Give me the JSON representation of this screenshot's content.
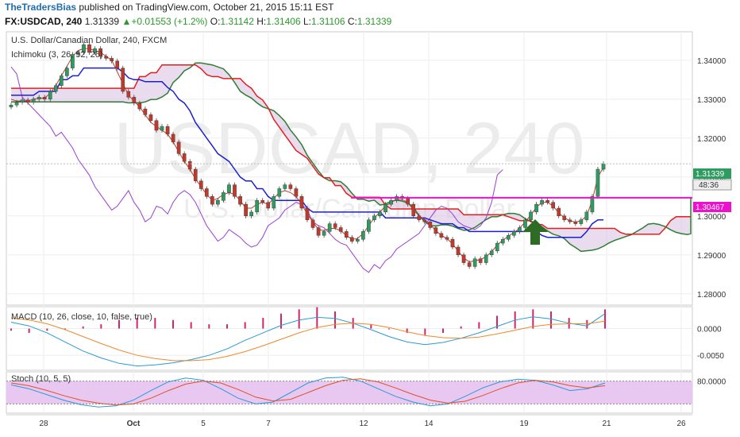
{
  "header": {
    "author": "TheTradersBias",
    "published_text": " published on TradingView.com, October 21, 2015 15:11 EST",
    "symbol": "FX:USDCAD, 240",
    "last": "1.31339",
    "change": "+0.01553 (+1.2%)",
    "o_label": "O:",
    "o": "1.31142",
    "h_label": "H:",
    "h": "1.31406",
    "l_label": "L:",
    "l": "1.31106",
    "c_label": "C:",
    "c": "1.31339"
  },
  "panes": {
    "main_title": "U.S. Dollar/Canadian Dollar, 240, FXCM",
    "ichimoku_label": "Ichimoku (3, 26, 52, 26)",
    "macd_label": "MACD (10, 26, close, 10, false, true)",
    "stoch_label": "Stoch (10, 5, 5)",
    "watermark_big": "USDCAD, 240",
    "watermark_small": "U.S. Dollar/Canadian Dollar"
  },
  "price_tags": {
    "last": "1.31339",
    "countdown": "48:36",
    "level": "1.30467"
  },
  "colors": {
    "up": "#2e9b5f",
    "down": "#c0392b",
    "tenkan": "#c0392b",
    "kijun": "#1a1fd6",
    "chikou": "#9b3fd1",
    "senkou_a": "#2e7d32",
    "senkou_b": "#e02020",
    "cloud": "#d9c4e3",
    "level": "#ee11cc",
    "macd": "#2a9ad8",
    "signal": "#f0882a",
    "hist": "#d0266a",
    "stoch_k": "#2a9ad8",
    "stoch_d": "#e0502a",
    "stoch_band": "#e8c8f0",
    "arrow": "#2e6b24"
  },
  "chart_data": [
    {
      "type": "candlestick",
      "title": "U.S. Dollar/Canadian Dollar, 240, FXCM",
      "ylim": [
        1.2775,
        1.3465
      ],
      "yticks": [
        "1.34000",
        "1.33000",
        "1.32000",
        "1.31000",
        "1.30000",
        "1.29000",
        "1.28000"
      ],
      "xticks": [
        "28",
        "Oct",
        "5",
        "7",
        "12",
        "14",
        "19",
        "21",
        "26"
      ],
      "horizontal_level": 1.30467,
      "series": [
        {
          "name": "Close",
          "values": [
            1.3285,
            1.3292,
            1.3298,
            1.3292,
            1.33,
            1.3305,
            1.33,
            1.332,
            1.3335,
            1.336,
            1.338,
            1.3415,
            1.342,
            1.344,
            1.342,
            1.343,
            1.341,
            1.3405,
            1.3398,
            1.338,
            1.332,
            1.3305,
            1.329,
            1.3275,
            1.326,
            1.3245,
            1.322,
            1.323,
            1.321,
            1.319,
            1.316,
            1.314,
            1.312,
            1.309,
            1.307,
            1.305,
            1.303,
            1.304,
            1.306,
            1.308,
            1.305,
            1.303,
            1.3,
            1.301,
            1.304,
            1.3035,
            1.302,
            1.305,
            1.307,
            1.308,
            1.307,
            1.305,
            1.302,
            1.299,
            1.297,
            1.295,
            1.296,
            1.298,
            1.297,
            1.296,
            1.2945,
            1.2935,
            1.294,
            1.296,
            1.299,
            1.3,
            1.301,
            1.303,
            1.304,
            1.305,
            1.3045,
            1.303,
            1.3,
            1.299,
            1.2985,
            1.297,
            1.2955,
            1.2945,
            1.294,
            1.292,
            1.29,
            1.288,
            1.287,
            1.289,
            1.288,
            1.29,
            1.291,
            1.293,
            1.294,
            1.295,
            1.296,
            1.297,
            1.299,
            1.301,
            1.303,
            1.304,
            1.3035,
            1.302,
            1.3,
            1.299,
            1.2985,
            1.298,
            1.299,
            1.301,
            1.305,
            1.312,
            1.3134
          ]
        },
        {
          "name": "Tenkan",
          "values": [
            1.33,
            1.3295,
            1.3296,
            1.3295,
            1.33,
            1.3302,
            1.3303,
            1.3315,
            1.3335,
            1.336,
            1.3385,
            1.341,
            1.3425,
            1.343,
            1.343,
            1.3425,
            1.342,
            1.341,
            1.34,
            1.337,
            1.334,
            1.331,
            1.3295,
            1.328,
            1.326,
            1.324,
            1.323,
            1.322,
            1.321,
            1.319,
            1.3165,
            1.314,
            1.312,
            1.3095,
            1.3075,
            1.3055,
            1.304,
            1.3045,
            1.3055,
            1.306,
            1.3055,
            1.304,
            1.302,
            1.302,
            1.303,
            1.3035,
            1.303,
            1.3045,
            1.306,
            1.3065,
            1.306,
            1.305,
            1.303,
            1.3005,
            1.2985,
            1.2965,
            1.2962,
            1.2968,
            1.2968,
            1.2962,
            1.295,
            1.294,
            1.2942,
            1.2955,
            1.2975,
            1.2995,
            1.301,
            1.3025,
            1.3035,
            1.3042,
            1.3042,
            1.3035,
            1.3015,
            1.3,
            1.299,
            1.2978,
            1.2962,
            1.295,
            1.2942,
            1.2928,
            1.291,
            1.2892,
            1.2882,
            1.2885,
            1.2888,
            1.2895,
            1.2908,
            1.2925,
            1.2938,
            1.2948,
            1.2958,
            1.2968,
            1.2985,
            1.3002,
            1.3022,
            1.3035,
            1.3035,
            1.3025,
            1.3008,
            1.2995,
            1.2988,
            1.2984,
            1.2988,
            1.3,
            1.304,
            1.31,
            1.3125
          ]
        },
        {
          "name": "Kijun",
          "values": [
            1.331,
            1.331,
            1.331,
            1.331,
            1.331,
            1.332,
            1.332,
            1.332,
            1.332,
            1.335,
            1.335,
            1.336,
            1.336,
            1.338,
            1.338,
            1.338,
            1.338,
            1.338,
            1.338,
            1.338,
            1.337,
            1.3355,
            1.335,
            1.335,
            1.3345,
            1.3345,
            1.3345,
            1.3345,
            1.333,
            1.332,
            1.33,
            1.329,
            1.327,
            1.324,
            1.322,
            1.32,
            1.318,
            1.316,
            1.315,
            1.314,
            1.312,
            1.31,
            1.309,
            1.309,
            1.307,
            1.307,
            1.305,
            1.304,
            1.304,
            1.304,
            1.304,
            1.304,
            1.304,
            1.302,
            1.301,
            1.301,
            1.301,
            1.301,
            1.301,
            1.301,
            1.301,
            1.301,
            1.301,
            1.301,
            1.301,
            1.301,
            1.301,
            1.2995,
            1.2995,
            1.2995,
            1.2995,
            1.2995,
            1.2995,
            1.2995,
            1.2995,
            1.299,
            1.2985,
            1.298,
            1.298,
            1.298,
            1.297,
            1.297,
            1.296,
            1.296,
            1.296,
            1.296,
            1.296,
            1.296,
            1.296,
            1.296,
            1.296,
            1.296,
            1.296,
            1.296,
            1.296,
            1.295,
            1.2945,
            1.2945,
            1.2945,
            1.2945,
            1.2945,
            1.2945,
            1.2945,
            1.296,
            1.298,
            1.299,
            1.299
          ]
        }
      ]
    },
    {
      "type": "bar+line",
      "title": "MACD (10, 26, close, 10, false, true)",
      "ylim": [
        -0.0075,
        0.0035
      ],
      "yticks": [
        "0.0000",
        "-0.0050"
      ],
      "series": [
        {
          "name": "MACD",
          "values": [
            0.0012,
            0.0005,
            -0.0008,
            -0.0025,
            -0.0042,
            -0.0055,
            -0.0065,
            -0.007,
            -0.0068,
            -0.0064,
            -0.0058,
            -0.005,
            -0.0038,
            -0.0022,
            -0.0008,
            0.0006,
            0.0016,
            0.0021,
            0.0019,
            0.001,
            -0.0002,
            -0.0015,
            -0.0025,
            -0.003,
            -0.0026,
            -0.0018,
            -0.0008,
            0.0004,
            0.0016,
            0.0022,
            0.0018,
            0.001,
            0.0005,
            0.0028
          ]
        },
        {
          "name": "Signal",
          "values": [
            0.002,
            0.0016,
            0.0009,
            -0.0002,
            -0.0015,
            -0.0028,
            -0.004,
            -0.005,
            -0.0056,
            -0.006,
            -0.006,
            -0.0058,
            -0.0052,
            -0.0043,
            -0.0032,
            -0.002,
            -0.0008,
            0.0002,
            0.0008,
            0.001,
            0.0008,
            0.0002,
            -0.0006,
            -0.0013,
            -0.0017,
            -0.0018,
            -0.0016,
            -0.001,
            -0.0003,
            0.0004,
            0.0008,
            0.0009,
            0.0009,
            0.0014
          ]
        },
        {
          "name": "Histogram",
          "values": [
            -0.0001,
            -0.0002,
            -0.0001,
            0.0,
            0.0001,
            0.0002,
            0.0004,
            0.0005,
            0.0005,
            0.0004,
            0.0003,
            0.0002,
            0.0002,
            0.0003,
            0.0005,
            0.0007,
            0.0009,
            0.001,
            0.0008,
            0.0005,
            0.0002,
            0.0,
            -0.0002,
            -0.0003,
            -0.0002,
            0.0001,
            0.0003,
            0.0006,
            0.0008,
            0.0009,
            0.0008,
            0.0005,
            0.0004,
            0.0009
          ]
        }
      ]
    },
    {
      "type": "line",
      "title": "Stoch (10, 5, 5)",
      "ylim": [
        0,
        100
      ],
      "yticks": [
        "80.0000"
      ],
      "band": [
        20,
        80
      ],
      "series": [
        {
          "name": "%K",
          "values": [
            70,
            60,
            45,
            30,
            18,
            12,
            15,
            30,
            55,
            78,
            88,
            82,
            60,
            35,
            20,
            25,
            50,
            75,
            88,
            90,
            80,
            60,
            40,
            25,
            15,
            20,
            40,
            62,
            78,
            85,
            82,
            70,
            55,
            60,
            75
          ]
        },
        {
          "name": "%D",
          "values": [
            75,
            68,
            56,
            42,
            30,
            22,
            17,
            20,
            35,
            55,
            72,
            80,
            75,
            58,
            38,
            28,
            32,
            50,
            68,
            82,
            86,
            78,
            62,
            45,
            30,
            22,
            27,
            42,
            60,
            75,
            82,
            78,
            68,
            62,
            68
          ]
        }
      ]
    }
  ]
}
